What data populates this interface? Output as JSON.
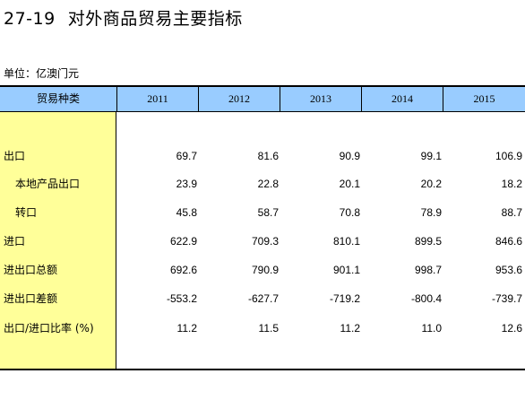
{
  "title": {
    "number": "27-19",
    "text": "对外商品贸易主要指标"
  },
  "unit": "单位：亿澳门元",
  "table": {
    "header": {
      "category": "贸易种类",
      "years": [
        "2011",
        "2012",
        "2013",
        "2014",
        "2015"
      ]
    },
    "rows": [
      {
        "label": "出口",
        "values": [
          "69.7",
          "81.6",
          "90.9",
          "99.1",
          "106.9"
        ]
      },
      {
        "label": "本地产品出口",
        "values": [
          "23.9",
          "22.8",
          "20.1",
          "20.2",
          "18.2"
        ]
      },
      {
        "label": "转口",
        "values": [
          "45.8",
          "58.7",
          "70.8",
          "78.9",
          "88.7"
        ]
      },
      {
        "label": "进口",
        "values": [
          "622.9",
          "709.3",
          "810.1",
          "899.5",
          "846.6"
        ]
      },
      {
        "label": "进出口总额",
        "values": [
          "692.6",
          "790.9",
          "901.1",
          "998.7",
          "953.6"
        ]
      },
      {
        "label": "进出口差额",
        "values": [
          "-553.2",
          "-627.7",
          "-719.2",
          "-800.4",
          "-739.7"
        ]
      },
      {
        "label": "出口/进口比率 (%)",
        "values": [
          "11.2",
          "11.5",
          "11.2",
          "11.0",
          "12.6"
        ]
      }
    ]
  }
}
